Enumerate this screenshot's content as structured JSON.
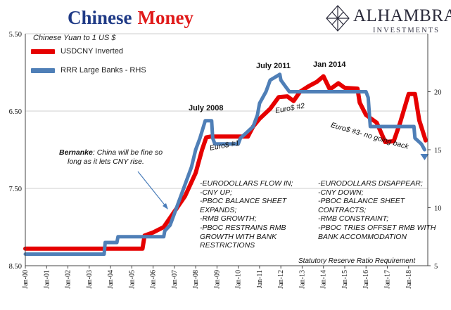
{
  "header": {
    "title_part1": "Chinese",
    "title_part2": "Money",
    "subtitle": "Chinese Yuan to 1 US $"
  },
  "logo": {
    "name": "ALHAMBRA",
    "sub": "INVESTMENTS",
    "icon": "diamond-lattice-icon"
  },
  "colors": {
    "usdcny": "#e60000",
    "rrr": "#4f7fb7",
    "arrow": "#4a7dba",
    "grid": "#cfcfcf"
  },
  "annotations": {
    "july2008": "July 2008",
    "july2011": "July 2011",
    "jan2014": "Jan 2014",
    "euro1": "Euro$ #1",
    "euro2": "Euro$ #2",
    "euro3": "Euro$ #3- no going back",
    "bernanke_bold": "Bernanke",
    "bernanke_rest": ": China will be fine so",
    "bernanke_line2": "long as it lets CNY rise.",
    "block_left": [
      "-EURODOLLARS FLOW IN;",
      "-CNY UP;",
      "-PBOC BALANCE SHEET",
      "EXPANDS;",
      "-RMB GROWTH;",
      "-PBOC RESTRAINS RMB",
      "GROWTH WITH BANK",
      "RESTRICTIONS"
    ],
    "block_right": [
      "-EURODOLLARS DISAPPEAR;",
      "-CNY DOWN;",
      "-PBOC BALANCE SHEET",
      "CONTRACTS;",
      "-RMB CONSTRAINT;",
      "-PBOC TRIES OFFSET RMB WITH",
      "BANK ACCOMMODATION"
    ],
    "rrr_note": "Statutory Reserve Ratio Requirement"
  },
  "chart_data": {
    "type": "line",
    "x_categories": [
      "Jan-00",
      "Jan-01",
      "Jan-02",
      "Jan-03",
      "Jan-04",
      "Jan-05",
      "Jan-06",
      "Jan-07",
      "Jan-08",
      "Jan-09",
      "Jan-10",
      "Jan-11",
      "Jan-12",
      "Jan-13",
      "Jan-14",
      "Jan-15",
      "Jan-16",
      "Jan-17",
      "Jan-18"
    ],
    "x_range": [
      2000.0,
      2018.9
    ],
    "y_left": {
      "min": 5.5,
      "max": 8.5,
      "inverted": true,
      "ticks": [
        "5.50",
        "6.50",
        "7.50",
        "8.50"
      ],
      "tick_values": [
        5.5,
        6.5,
        7.5,
        8.5
      ]
    },
    "y_right": {
      "min": 5,
      "max": 25,
      "ticks": [
        "5",
        "10",
        "15",
        "20"
      ],
      "tick_values": [
        5,
        10,
        15,
        20
      ]
    },
    "grid": "horizontal",
    "series": [
      {
        "name": "USDCNY Inverted",
        "axis": "left",
        "points": [
          [
            2000.0,
            8.28
          ],
          [
            2005.5,
            8.28
          ],
          [
            2005.6,
            8.11
          ],
          [
            2006.0,
            8.07
          ],
          [
            2006.5,
            8.0
          ],
          [
            2007.0,
            7.8
          ],
          [
            2007.5,
            7.6
          ],
          [
            2008.0,
            7.3
          ],
          [
            2008.3,
            7.0
          ],
          [
            2008.5,
            6.84
          ],
          [
            2008.7,
            6.83
          ],
          [
            2009.0,
            6.83
          ],
          [
            2009.5,
            6.83
          ],
          [
            2010.0,
            6.83
          ],
          [
            2010.45,
            6.83
          ],
          [
            2010.7,
            6.7
          ],
          [
            2011.0,
            6.6
          ],
          [
            2011.5,
            6.47
          ],
          [
            2011.9,
            6.32
          ],
          [
            2012.3,
            6.31
          ],
          [
            2012.6,
            6.37
          ],
          [
            2012.9,
            6.25
          ],
          [
            2013.3,
            6.18
          ],
          [
            2013.7,
            6.12
          ],
          [
            2014.0,
            6.05
          ],
          [
            2014.3,
            6.22
          ],
          [
            2014.7,
            6.14
          ],
          [
            2015.0,
            6.2
          ],
          [
            2015.6,
            6.21
          ],
          [
            2015.7,
            6.39
          ],
          [
            2016.0,
            6.55
          ],
          [
            2016.5,
            6.65
          ],
          [
            2016.9,
            6.9
          ],
          [
            2017.3,
            6.89
          ],
          [
            2017.6,
            6.65
          ],
          [
            2018.0,
            6.28
          ],
          [
            2018.3,
            6.28
          ],
          [
            2018.5,
            6.62
          ],
          [
            2018.8,
            6.88
          ]
        ]
      },
      {
        "name": "RRR Large Banks - RHS",
        "axis": "right",
        "points": [
          [
            2000.0,
            6.0
          ],
          [
            2003.7,
            6.0
          ],
          [
            2003.75,
            7.0
          ],
          [
            2004.3,
            7.0
          ],
          [
            2004.35,
            7.5
          ],
          [
            2006.5,
            7.5
          ],
          [
            2006.55,
            8.0
          ],
          [
            2006.8,
            8.5
          ],
          [
            2007.0,
            9.5
          ],
          [
            2007.2,
            10.5
          ],
          [
            2007.4,
            11.5
          ],
          [
            2007.6,
            12.5
          ],
          [
            2007.8,
            13.5
          ],
          [
            2008.0,
            15.0
          ],
          [
            2008.2,
            16.0
          ],
          [
            2008.45,
            17.5
          ],
          [
            2008.75,
            17.5
          ],
          [
            2008.8,
            16.0
          ],
          [
            2008.9,
            15.5
          ],
          [
            2009.0,
            15.5
          ],
          [
            2010.0,
            15.5
          ],
          [
            2010.1,
            16.0
          ],
          [
            2010.4,
            16.5
          ],
          [
            2010.7,
            17.0
          ],
          [
            2010.9,
            18.0
          ],
          [
            2011.0,
            19.0
          ],
          [
            2011.3,
            20.0
          ],
          [
            2011.5,
            21.0
          ],
          [
            2011.95,
            21.5
          ],
          [
            2012.0,
            21.0
          ],
          [
            2012.2,
            20.5
          ],
          [
            2012.4,
            20.0
          ],
          [
            2016.0,
            20.0
          ],
          [
            2016.1,
            19.5
          ],
          [
            2016.2,
            17.0
          ],
          [
            2018.25,
            17.0
          ],
          [
            2018.3,
            16.0
          ],
          [
            2018.6,
            15.5
          ],
          [
            2018.75,
            15.0
          ]
        ]
      }
    ]
  }
}
